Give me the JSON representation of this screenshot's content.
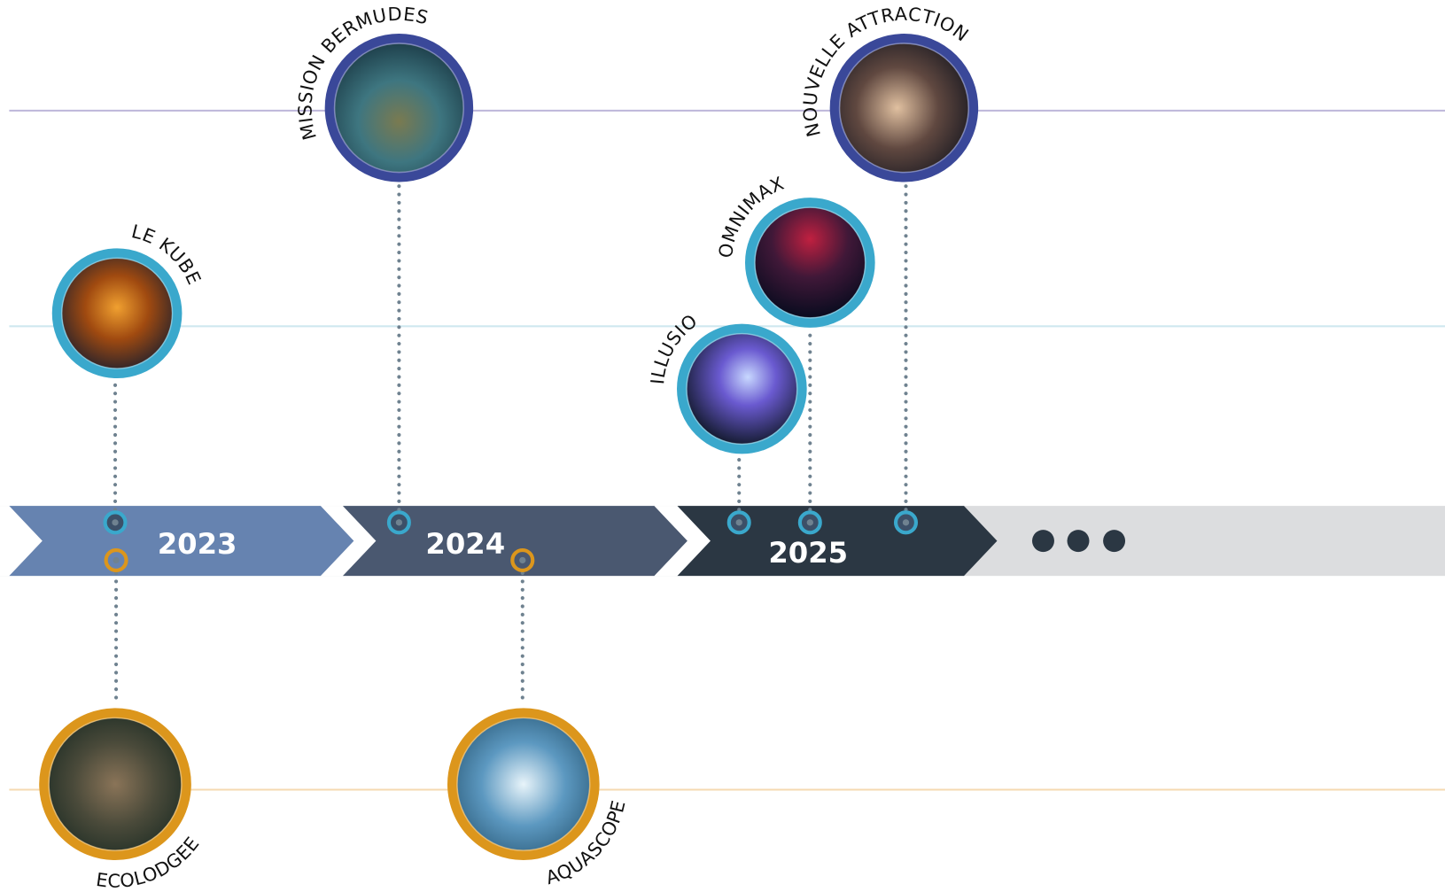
{
  "timeline": {
    "years": [
      "2023",
      "2024",
      "2025"
    ],
    "items": [
      {
        "label": "LE KUBE"
      },
      {
        "label": "MISSION BERMUDES"
      },
      {
        "label": "ILLUSIO"
      },
      {
        "label": "OMNIMAX"
      },
      {
        "label": "NOUVELLE ATTRACTION"
      },
      {
        "label": "ECOLODGEE"
      },
      {
        "label": "AQUASCOPE"
      }
    ]
  }
}
